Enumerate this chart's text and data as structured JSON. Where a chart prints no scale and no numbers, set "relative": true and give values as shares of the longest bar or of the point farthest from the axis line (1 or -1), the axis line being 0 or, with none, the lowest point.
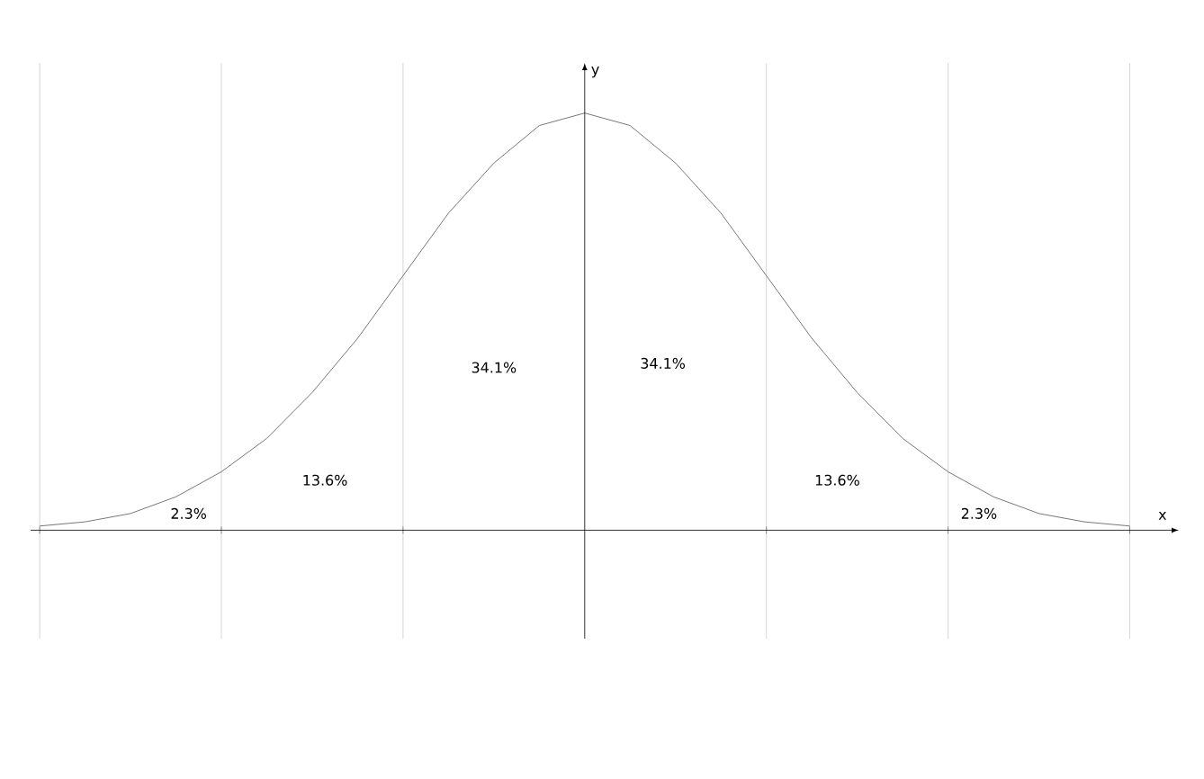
{
  "chart_data": {
    "type": "line",
    "relative": true,
    "xlabel": "x",
    "ylabel": "y",
    "categories": [
      null,
      null,
      null,
      null,
      null,
      null,
      null,
      null,
      null,
      null,
      null,
      null,
      null,
      null,
      null,
      null,
      null,
      null,
      null,
      null,
      null,
      null,
      null,
      null,
      null
    ],
    "values": [
      0.01,
      0.02,
      0.04,
      0.08,
      0.14,
      0.22,
      0.33,
      0.46,
      0.61,
      0.76,
      0.88,
      0.97,
      1,
      0.97,
      0.88,
      0.76,
      0.61,
      0.46,
      0.33,
      0.22,
      0.14,
      0.08,
      0.04,
      0.02,
      0.01
    ],
    "color": "#555555",
    "marker": "none",
    "line_style": "solid",
    "grid": "x",
    "annotations": [
      "2.3%",
      "13.6%",
      "34.1%",
      "34.1%",
      "13.6%",
      "2.3%"
    ]
  }
}
